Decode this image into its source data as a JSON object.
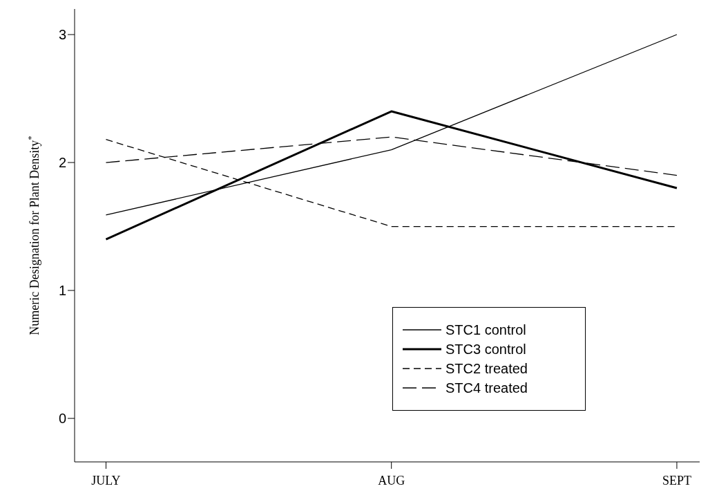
{
  "chart_data": {
    "type": "line",
    "categories": [
      "JULY",
      "AUG",
      "SEPT"
    ],
    "ylabel": "Numeric Designation for Plant Density$^{*}$",
    "ylim": [
      -0.34,
      3.2
    ],
    "yticks": [
      0,
      1,
      2,
      3
    ],
    "grid": false,
    "legend": "bottom right",
    "marker": "none",
    "series": [
      {
        "name": "STC1 control",
        "color": "#000000",
        "line_style": "solid",
        "values": [
          1.59,
          2.1,
          3.0
        ]
      },
      {
        "name": "STC3 control",
        "color": "#000000",
        "line_style": "solid",
        "values": [
          1.4,
          2.4,
          1.8
        ]
      },
      {
        "name": "STC2 treated",
        "color": "#000000",
        "line_style": "dashed",
        "values": [
          2.18,
          1.5,
          1.5
        ]
      },
      {
        "name": "STC4 treated",
        "color": "#000000",
        "line_style": "dashed",
        "values": [
          2.0,
          2.2,
          1.9
        ]
      }
    ]
  }
}
